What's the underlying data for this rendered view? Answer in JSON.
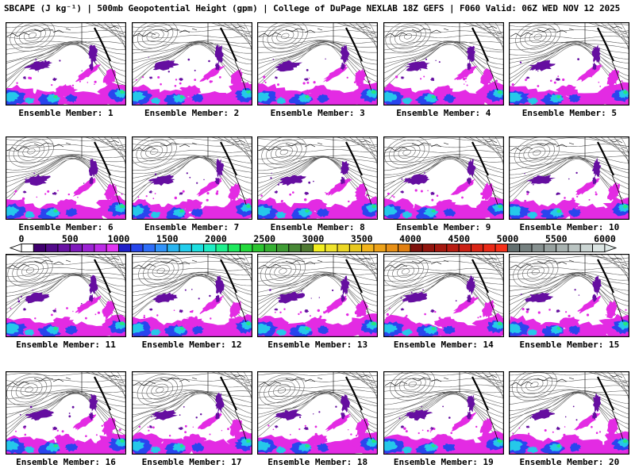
{
  "title": "SBCAPE (J kg⁻¹) | 500mb Geopotential Height (gpm) | College of DuPage NEXLAB 18Z GEFS | F060 Valid: 06Z WED NOV 12 2025",
  "product": {
    "field_shaded": "SBCAPE (J kg⁻¹)",
    "field_contoured": "500mb Geopotential Height (gpm)",
    "source": "College of DuPage NEXLAB 18Z GEFS",
    "forecast_hour": "F060",
    "valid": "06Z WED NOV 12 2025"
  },
  "panels": [
    {
      "label": "Ensemble Member: 1"
    },
    {
      "label": "Ensemble Member: 2"
    },
    {
      "label": "Ensemble Member: 3"
    },
    {
      "label": "Ensemble Member: 4"
    },
    {
      "label": "Ensemble Member: 5"
    },
    {
      "label": "Ensemble Member: 6"
    },
    {
      "label": "Ensemble Member: 7"
    },
    {
      "label": "Ensemble Member: 8"
    },
    {
      "label": "Ensemble Member: 9"
    },
    {
      "label": "Ensemble Member: 10"
    },
    {
      "label": "Ensemble Member: 11"
    },
    {
      "label": "Ensemble Member: 12"
    },
    {
      "label": "Ensemble Member: 13"
    },
    {
      "label": "Ensemble Member: 14"
    },
    {
      "label": "Ensemble Member: 15"
    },
    {
      "label": "Ensemble Member: 16"
    },
    {
      "label": "Ensemble Member: 17"
    },
    {
      "label": "Ensemble Member: 18"
    },
    {
      "label": "Ensemble Member: 19"
    },
    {
      "label": "Ensemble Member: 20"
    }
  ],
  "colorbar": {
    "ticks": [
      "0",
      "500",
      "1000",
      "1500",
      "2000",
      "2500",
      "3000",
      "3500",
      "4000",
      "4500",
      "5000",
      "5500",
      "6000"
    ],
    "cell_colors": [
      "#ffffff",
      "#40006f",
      "#530b8a",
      "#6812a3",
      "#7f1abc",
      "#9c23d3",
      "#bc2ce6",
      "#e136f2",
      "#2020c8",
      "#2746ec",
      "#2e6ef8",
      "#3193fa",
      "#29b4f0",
      "#22cdec",
      "#1ddfdf",
      "#1fedc4",
      "#1ff18e",
      "#1fe95e",
      "#24d93c",
      "#2cc530",
      "#35b032",
      "#3f9c34",
      "#488836",
      "#507a32",
      "#f2ef1f",
      "#efe32c",
      "#ecd725",
      "#e7c81f",
      "#f2b41c",
      "#eda219",
      "#e89016",
      "#e07f12",
      "#7f120c",
      "#92150e",
      "#a51910",
      "#b81d12",
      "#ca2114",
      "#da2516",
      "#ea2a18",
      "#f6301a",
      "#636f6f",
      "#75807f",
      "#86908f",
      "#97a19f",
      "#a8b2b0",
      "#b9c3c1",
      "#cad4d2",
      "#dbe5e3"
    ],
    "arrow_left_color": "#ffffff",
    "arrow_right_color": "#dfe9e7"
  },
  "map_colors": {
    "background": "#ffffff",
    "border": "#000000",
    "contour": "#5a5a5a",
    "coast": "#000000",
    "cape_magenta": "#e32be3",
    "cape_purple": "#650ea0",
    "cape_blue": "#2945ee",
    "cape_cyan": "#25c8ea",
    "cape_green": "#25e87d"
  }
}
